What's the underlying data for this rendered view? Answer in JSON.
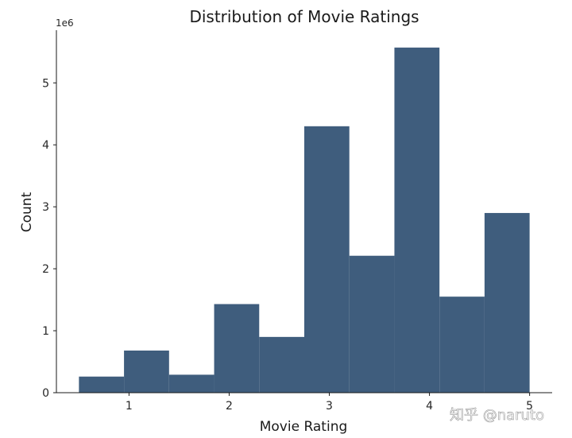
{
  "chart_data": {
    "type": "bar",
    "title": "Distribution of Movie Ratings",
    "xlabel": "Movie Rating",
    "ylabel": "Count",
    "y_offset_label": "1e6",
    "bins": [
      {
        "start": 0.5,
        "end": 0.95,
        "value": 0.26
      },
      {
        "start": 0.95,
        "end": 1.4,
        "value": 0.68
      },
      {
        "start": 1.4,
        "end": 1.85,
        "value": 0.29
      },
      {
        "start": 1.85,
        "end": 2.3,
        "value": 1.43
      },
      {
        "start": 2.3,
        "end": 2.75,
        "value": 0.9
      },
      {
        "start": 2.75,
        "end": 3.2,
        "value": 4.3
      },
      {
        "start": 3.2,
        "end": 3.65,
        "value": 2.21
      },
      {
        "start": 3.65,
        "end": 4.1,
        "value": 5.57
      },
      {
        "start": 4.1,
        "end": 4.55,
        "value": 1.55
      },
      {
        "start": 4.55,
        "end": 5.0,
        "value": 2.9
      }
    ],
    "xticks": [
      "1",
      "2",
      "3",
      "4",
      "5"
    ],
    "yticks": [
      "0",
      "1",
      "2",
      "3",
      "4",
      "5"
    ],
    "xlim": [
      0.275,
      5.225
    ],
    "ylim": [
      0,
      5.85
    ],
    "grid": false,
    "bar_color": "#3f5d7d"
  },
  "watermark": "知乎 @naruto"
}
